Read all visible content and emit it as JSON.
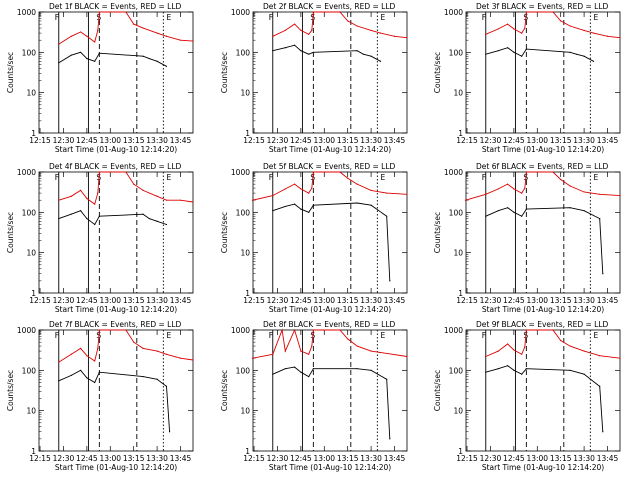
{
  "figure": {
    "colors": {
      "events": "#000000",
      "lld": "#dd0000",
      "axis": "#000000",
      "background": "#ffffff"
    },
    "xlabel": "Start Time (01-Aug-10 12:14:20)",
    "ylabel": "Counts/sec",
    "xticks": [
      "12:15",
      "12:30",
      "12:45",
      "13:00",
      "13:15",
      "13:30",
      "13:45"
    ],
    "yticks": [
      "1",
      "10",
      "100",
      "1000"
    ]
  },
  "chart_data": [
    {
      "type": "line",
      "title": "Det 1f BLACK = Events, RED = LLD",
      "xlabel": "Start Time (01-Aug-10 12:14:20)",
      "ylabel": "Counts/sec",
      "y_scale": "log",
      "ylim": [
        1,
        1000
      ],
      "x_range": [
        "12:14",
        "13:53"
      ],
      "series": [
        {
          "name": "Events",
          "color": "#000000",
          "x": [
            "12:27",
            "12:35",
            "12:41",
            "12:45",
            "12:50",
            "12:53",
            "13:21",
            "13:25",
            "13:30",
            "13:36"
          ],
          "values": [
            55,
            85,
            100,
            70,
            60,
            95,
            80,
            70,
            60,
            45
          ]
        },
        {
          "name": "LLD",
          "color": "#dd0000",
          "x": [
            "12:27",
            "12:35",
            "12:41",
            "12:45",
            "12:50",
            "12:52",
            "12:53",
            "13:10",
            "13:15",
            "13:21",
            "13:30",
            "13:36",
            "13:45",
            "13:53"
          ],
          "values": [
            160,
            250,
            320,
            250,
            180,
            350,
            1000,
            1000,
            500,
            400,
            300,
            250,
            200,
            190
          ]
        }
      ],
      "annotations": [
        "F",
        "S",
        "E"
      ]
    },
    {
      "type": "line",
      "title": "Det 2f BLACK = Events, RED = LLD",
      "xlabel": "Start Time (01-Aug-10 12:14:20)",
      "ylabel": "Counts/sec",
      "y_scale": "log",
      "ylim": [
        1,
        1000
      ],
      "x_range": [
        "12:14",
        "13:53"
      ],
      "series": [
        {
          "name": "Events",
          "color": "#000000",
          "x": [
            "12:27",
            "12:35",
            "12:41",
            "12:45",
            "12:50",
            "12:53",
            "13:21",
            "13:25",
            "13:30",
            "13:36"
          ],
          "values": [
            110,
            130,
            150,
            110,
            90,
            100,
            110,
            90,
            80,
            60
          ]
        },
        {
          "name": "LLD",
          "color": "#dd0000",
          "x": [
            "12:27",
            "12:35",
            "12:41",
            "12:45",
            "12:50",
            "12:52",
            "12:53",
            "13:10",
            "13:15",
            "13:21",
            "13:30",
            "13:36",
            "13:45",
            "13:53"
          ],
          "values": [
            250,
            350,
            500,
            350,
            280,
            350,
            1000,
            1000,
            600,
            450,
            350,
            300,
            250,
            230
          ]
        }
      ],
      "annotations": [
        "F",
        "S",
        "E"
      ]
    },
    {
      "type": "line",
      "title": "Det 3f BLACK = Events, RED = LLD",
      "xlabel": "Start Time (01-Aug-10 12:14:20)",
      "ylabel": "Counts/sec",
      "y_scale": "log",
      "ylim": [
        1,
        1000
      ],
      "x_range": [
        "12:14",
        "13:53"
      ],
      "series": [
        {
          "name": "Events",
          "color": "#000000",
          "x": [
            "12:27",
            "12:35",
            "12:41",
            "12:45",
            "12:50",
            "12:53",
            "13:21",
            "13:25",
            "13:30",
            "13:36"
          ],
          "values": [
            90,
            110,
            130,
            100,
            80,
            120,
            100,
            90,
            80,
            60
          ]
        },
        {
          "name": "LLD",
          "color": "#dd0000",
          "x": [
            "12:27",
            "12:35",
            "12:41",
            "12:45",
            "12:50",
            "12:52",
            "12:53",
            "13:10",
            "13:15",
            "13:21",
            "13:30",
            "13:36",
            "13:45",
            "13:53"
          ],
          "values": [
            280,
            380,
            500,
            380,
            300,
            400,
            1000,
            1000,
            600,
            450,
            350,
            300,
            250,
            230
          ]
        }
      ],
      "annotations": [
        "F",
        "S",
        "E"
      ]
    },
    {
      "type": "line",
      "title": "Det 4f BLACK = Events, RED = LLD",
      "xlabel": "Start Time (01-Aug-10 12:14:20)",
      "ylabel": "Counts/sec",
      "y_scale": "log",
      "ylim": [
        1,
        1000
      ],
      "x_range": [
        "12:14",
        "13:53"
      ],
      "series": [
        {
          "name": "Events",
          "color": "#000000",
          "x": [
            "12:27",
            "12:35",
            "12:41",
            "12:45",
            "12:50",
            "12:53",
            "13:21",
            "13:25",
            "13:30",
            "13:36"
          ],
          "values": [
            70,
            90,
            110,
            70,
            50,
            80,
            90,
            70,
            60,
            50
          ]
        },
        {
          "name": "LLD",
          "color": "#dd0000",
          "x": [
            "12:27",
            "12:35",
            "12:41",
            "12:45",
            "12:50",
            "12:52",
            "12:53",
            "13:10",
            "13:15",
            "13:21",
            "13:30",
            "13:36",
            "13:45",
            "13:53"
          ],
          "values": [
            200,
            250,
            350,
            220,
            160,
            300,
            1000,
            1000,
            500,
            350,
            250,
            200,
            200,
            180
          ]
        }
      ],
      "annotations": [
        "F",
        "S",
        "E"
      ]
    },
    {
      "type": "line",
      "title": "Det 5f BLACK = Events, RED = LLD",
      "xlabel": "Start Time (01-Aug-10 12:14:20)",
      "ylabel": "Counts/sec",
      "y_scale": "log",
      "ylim": [
        1,
        1000
      ],
      "x_range": [
        "12:14",
        "13:53"
      ],
      "series": [
        {
          "name": "Events",
          "color": "#000000",
          "x": [
            "12:27",
            "12:35",
            "12:41",
            "12:45",
            "12:50",
            "12:53",
            "13:21",
            "13:30",
            "13:40",
            "13:42"
          ],
          "values": [
            110,
            140,
            160,
            120,
            100,
            150,
            170,
            150,
            80,
            2
          ]
        },
        {
          "name": "LLD",
          "color": "#dd0000",
          "x": [
            "12:14",
            "12:27",
            "12:35",
            "12:41",
            "12:45",
            "12:50",
            "12:52",
            "12:53",
            "13:10",
            "13:15",
            "13:21",
            "13:30",
            "13:40",
            "13:53"
          ],
          "values": [
            200,
            260,
            380,
            500,
            380,
            300,
            400,
            1000,
            1000,
            700,
            500,
            350,
            300,
            280
          ]
        }
      ],
      "annotations": [
        "F",
        "S",
        "E"
      ]
    },
    {
      "type": "line",
      "title": "Det 6f BLACK = Events, RED = LLD",
      "xlabel": "Start Time (01-Aug-10 12:14:20)",
      "ylabel": "Counts/sec",
      "y_scale": "log",
      "ylim": [
        1,
        1000
      ],
      "x_range": [
        "12:14",
        "13:53"
      ],
      "series": [
        {
          "name": "Events",
          "color": "#000000",
          "x": [
            "12:27",
            "12:35",
            "12:41",
            "12:45",
            "12:50",
            "12:53",
            "13:21",
            "13:30",
            "13:40",
            "13:42"
          ],
          "values": [
            80,
            110,
            130,
            100,
            80,
            120,
            130,
            110,
            70,
            3
          ]
        },
        {
          "name": "LLD",
          "color": "#dd0000",
          "x": [
            "12:14",
            "12:27",
            "12:35",
            "12:41",
            "12:45",
            "12:50",
            "12:52",
            "12:53",
            "13:10",
            "13:15",
            "13:21",
            "13:30",
            "13:40",
            "13:53"
          ],
          "values": [
            200,
            280,
            380,
            500,
            380,
            300,
            400,
            1000,
            1000,
            650,
            450,
            320,
            280,
            260
          ]
        }
      ],
      "annotations": [
        "F",
        "S",
        "E"
      ]
    },
    {
      "type": "line",
      "title": "Det 7f BLACK = Events, RED = LLD",
      "xlabel": "Start Time (01-Aug-10 12:14:20)",
      "ylabel": "Counts/sec",
      "y_scale": "log",
      "ylim": [
        1,
        1000
      ],
      "x_range": [
        "12:14",
        "13:53"
      ],
      "series": [
        {
          "name": "Events",
          "color": "#000000",
          "x": [
            "12:27",
            "12:35",
            "12:41",
            "12:45",
            "12:50",
            "12:53",
            "13:21",
            "13:30",
            "13:36",
            "13:38"
          ],
          "values": [
            55,
            75,
            100,
            65,
            50,
            90,
            70,
            60,
            40,
            3
          ]
        },
        {
          "name": "LLD",
          "color": "#dd0000",
          "x": [
            "12:27",
            "12:35",
            "12:41",
            "12:45",
            "12:50",
            "12:52",
            "12:53",
            "13:10",
            "13:15",
            "13:21",
            "13:30",
            "13:36",
            "13:45",
            "13:53"
          ],
          "values": [
            160,
            250,
            350,
            230,
            170,
            350,
            1000,
            1000,
            500,
            350,
            300,
            250,
            200,
            180
          ]
        }
      ],
      "annotations": [
        "F",
        "S",
        "E"
      ]
    },
    {
      "type": "line",
      "title": "Det 8f BLACK = Events, RED = LLD",
      "xlabel": "Start Time (01-Aug-10 12:14:20)",
      "ylabel": "Counts/sec",
      "y_scale": "log",
      "ylim": [
        1,
        1000
      ],
      "x_range": [
        "12:14",
        "13:53"
      ],
      "series": [
        {
          "name": "Events",
          "color": "#000000",
          "x": [
            "12:27",
            "12:35",
            "12:41",
            "12:45",
            "12:50",
            "12:53",
            "13:21",
            "13:30",
            "13:40",
            "13:42"
          ],
          "values": [
            80,
            110,
            120,
            90,
            70,
            110,
            110,
            100,
            60,
            2
          ]
        },
        {
          "name": "LLD",
          "color": "#dd0000",
          "x": [
            "12:14",
            "12:27",
            "12:33",
            "12:35",
            "12:41",
            "12:45",
            "12:50",
            "12:52",
            "12:53",
            "13:10",
            "13:15",
            "13:21",
            "13:30",
            "13:53"
          ],
          "values": [
            200,
            250,
            1000,
            300,
            1000,
            300,
            250,
            400,
            1000,
            1000,
            600,
            400,
            300,
            220
          ]
        }
      ],
      "annotations": [
        "F",
        "S",
        "E"
      ]
    },
    {
      "type": "line",
      "title": "Det 9f BLACK = Events, RED = LLD",
      "xlabel": "Start Time (01-Aug-10 12:14:20)",
      "ylabel": "Counts/sec",
      "y_scale": "log",
      "ylim": [
        1,
        1000
      ],
      "x_range": [
        "12:14",
        "13:53"
      ],
      "series": [
        {
          "name": "Events",
          "color": "#000000",
          "x": [
            "12:27",
            "12:35",
            "12:41",
            "12:45",
            "12:50",
            "12:53",
            "13:21",
            "13:30",
            "13:40",
            "13:42"
          ],
          "values": [
            90,
            110,
            130,
            100,
            80,
            110,
            100,
            80,
            40,
            3
          ]
        },
        {
          "name": "LLD",
          "color": "#dd0000",
          "x": [
            "12:27",
            "12:35",
            "12:41",
            "12:45",
            "12:50",
            "12:52",
            "12:53",
            "13:10",
            "13:15",
            "13:21",
            "13:30",
            "13:40",
            "13:53"
          ],
          "values": [
            220,
            300,
            450,
            320,
            250,
            380,
            1000,
            1000,
            550,
            400,
            300,
            230,
            200
          ]
        }
      ],
      "annotations": [
        "F",
        "S",
        "E"
      ]
    }
  ]
}
